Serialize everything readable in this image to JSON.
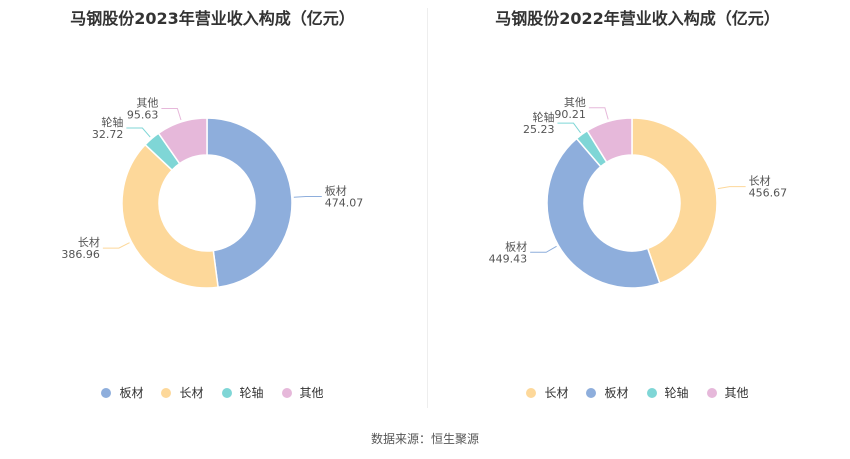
{
  "colors": {
    "板材": "#8eaedc",
    "长材": "#fdd89a",
    "轮轴": "#7fd6d6",
    "其他": "#e6b8da"
  },
  "chart_data": [
    {
      "type": "pie",
      "title": "马钢股份2023年营业收入构成（亿元）",
      "categories": [
        "板材",
        "长材",
        "轮轴",
        "其他"
      ],
      "values": [
        474.07,
        386.96,
        32.72,
        95.63
      ],
      "value_labels": [
        "474.07",
        "386.96",
        "32.72",
        "95.63"
      ],
      "legend": [
        "板材",
        "长材",
        "轮轴",
        "其他"
      ]
    },
    {
      "type": "pie",
      "title": "马钢股份2022年营业收入构成（亿元）",
      "categories": [
        "长材",
        "板材",
        "轮轴",
        "其他"
      ],
      "values": [
        456.67,
        449.43,
        25.23,
        90.21
      ],
      "value_labels": [
        "456.67",
        "449.43",
        "25.23",
        "90.21"
      ],
      "legend": [
        "长材",
        "板材",
        "轮轴",
        "其他"
      ]
    }
  ],
  "source": "数据来源：恒生聚源"
}
